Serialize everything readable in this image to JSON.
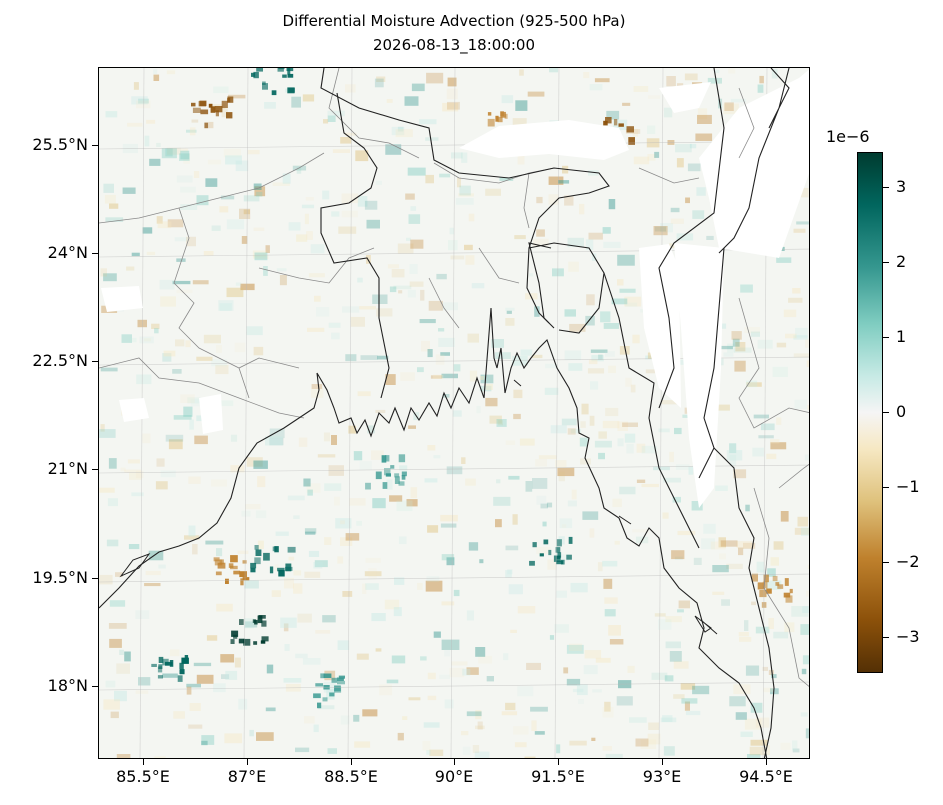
{
  "title": "Differential Moisture Advection (925-500 hPa)",
  "subtitle": "2026-08-13_18:00:00",
  "map": {
    "region": "Bay of Bengal / Bangladesh",
    "lat_labels": [
      "25.5°N",
      "24°N",
      "22.5°N",
      "21°N",
      "19.5°N",
      "18°N"
    ],
    "lon_labels": [
      "85.5°E",
      "87°E",
      "88.5°E",
      "90°E",
      "91.5°E",
      "93°E",
      "94.5°E"
    ],
    "gridlines": true,
    "features": [
      "coastline",
      "country-borders",
      "state-borders"
    ],
    "missing_data_color": "#ffffff"
  },
  "colorbar": {
    "exponent_label": "1e−6",
    "tick_labels": [
      "3",
      "2",
      "1",
      "0",
      "−1",
      "−2",
      "−3"
    ],
    "range": [
      -3.45,
      3.45
    ],
    "colormap": "BrBG",
    "colors": [
      "#003c30",
      "#01665e",
      "#35978f",
      "#80cdc1",
      "#c7eae5",
      "#f5f5f5",
      "#f6e8c3",
      "#dfc27d",
      "#bf812d",
      "#8c510a",
      "#543005"
    ]
  }
}
